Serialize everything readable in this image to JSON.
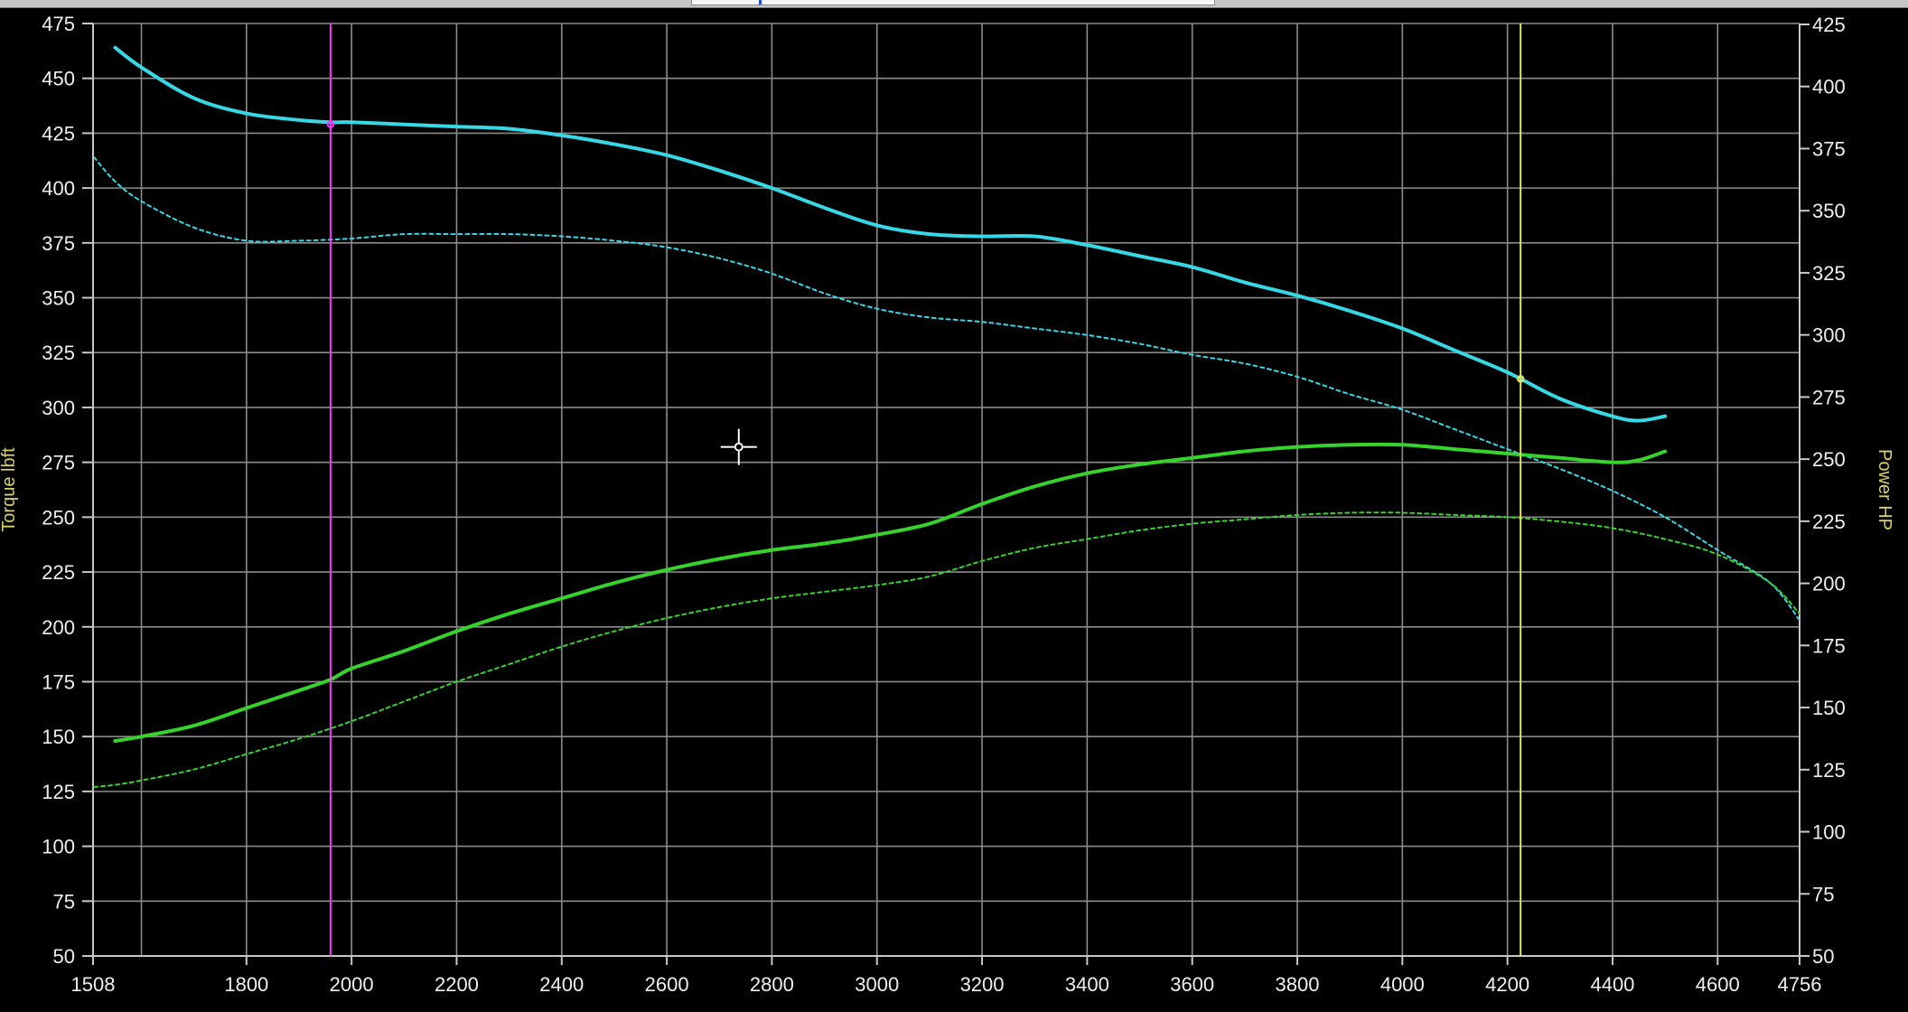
{
  "colors": {
    "background": "#000000",
    "grid": "#8b8b8b",
    "axis": "#c8c8c8",
    "tick_text": "#efefef",
    "axis_title": "#d7d16b",
    "torque": "#37d8e6",
    "power": "#36d42b",
    "cursor_left": "#ff32ff",
    "cursor_right": "#e7e35f",
    "crosshair": "#ffffff"
  },
  "chart_data": {
    "type": "line",
    "x_label": "",
    "y_left_label": "Torque lbft",
    "y_right_label": "Power HP",
    "x_range": [
      1508,
      4756
    ],
    "y_left_range": [
      50,
      475
    ],
    "y_right_range": [
      50,
      425
    ],
    "x_ticks": [
      1508,
      1800,
      2000,
      2200,
      2400,
      2600,
      2800,
      3000,
      3200,
      3400,
      3600,
      3800,
      4000,
      4200,
      4400,
      4600,
      4756
    ],
    "x_tick_labels": [
      "1508",
      "1800",
      "2000",
      "2200",
      "2400",
      "2600",
      "2800",
      "3000",
      "3200",
      "3400",
      "3600",
      "3800",
      "4000",
      "4200",
      "4400",
      "4600",
      "4756"
    ],
    "vertical_gridlines": [
      1600,
      1800,
      2000,
      2200,
      2400,
      2600,
      2800,
      3000,
      3200,
      3400,
      3600,
      3800,
      4000,
      4200,
      4400,
      4600
    ],
    "y_left_ticks": [
      475,
      450,
      425,
      400,
      375,
      350,
      325,
      300,
      275,
      250,
      225,
      200,
      175,
      150,
      125,
      100,
      75,
      50
    ],
    "y_left_tick_labels": [
      "475",
      "450",
      "425",
      "400",
      "375",
      "350",
      "325",
      "300",
      "275",
      "250",
      "225",
      "200",
      "175",
      "150",
      "125",
      "100",
      "75",
      "50"
    ],
    "y_right_ticks": [
      425,
      400,
      375,
      350,
      325,
      300,
      275,
      250,
      225,
      200,
      175,
      150,
      125,
      100,
      75,
      50
    ],
    "y_right_tick_labels": [
      "425",
      "400",
      "375",
      "350",
      "325",
      "300",
      "275",
      "250",
      "225",
      "200",
      "175",
      "150",
      "125",
      "100",
      "75",
      "50"
    ],
    "grid": true,
    "series": [
      {
        "axis": "left",
        "style": "solid",
        "color": "#37d8e6",
        "x": [
          1550,
          1600,
          1700,
          1800,
          1900,
          1960,
          2000,
          2100,
          2200,
          2300,
          2400,
          2500,
          2600,
          2700,
          2800,
          2900,
          3000,
          3100,
          3200,
          3300,
          3400,
          3500,
          3600,
          3700,
          3800,
          3900,
          4000,
          4100,
          4200,
          4300,
          4400,
          4450,
          4500
        ],
        "y": [
          464,
          455,
          441,
          434,
          431,
          430,
          430,
          429,
          428,
          427,
          424,
          420,
          415,
          408,
          400,
          391,
          383,
          379,
          378,
          378,
          374,
          369,
          364,
          357,
          351,
          344,
          336,
          326,
          316,
          304,
          296,
          294,
          296
        ]
      },
      {
        "axis": "left",
        "style": "dashed",
        "color": "#37d8e6",
        "x": [
          1510,
          1550,
          1600,
          1700,
          1800,
          1900,
          2000,
          2100,
          2200,
          2300,
          2400,
          2500,
          2600,
          2700,
          2800,
          2900,
          3000,
          3100,
          3200,
          3300,
          3400,
          3500,
          3600,
          3700,
          3800,
          3900,
          4000,
          4100,
          4200,
          4300,
          4400,
          4500,
          4600,
          4700,
          4756
        ],
        "y": [
          414,
          403,
          394,
          382,
          376,
          376,
          377,
          379,
          379,
          379,
          378,
          376,
          373,
          368,
          361,
          352,
          345,
          341,
          339,
          336,
          333,
          329,
          324,
          320,
          314,
          306,
          299,
          290,
          281,
          272,
          262,
          250,
          235,
          220,
          203
        ]
      },
      {
        "axis": "left",
        "style": "solid",
        "color": "#36d42b",
        "x": [
          1550,
          1600,
          1700,
          1800,
          1900,
          1960,
          2000,
          2100,
          2200,
          2300,
          2400,
          2500,
          2600,
          2700,
          2800,
          2900,
          3000,
          3100,
          3200,
          3300,
          3400,
          3500,
          3600,
          3700,
          3800,
          3900,
          4000,
          4100,
          4200,
          4300,
          4400,
          4450,
          4500
        ],
        "y": [
          148,
          150,
          155,
          163,
          171,
          176,
          181,
          189,
          198,
          206,
          213,
          220,
          226,
          231,
          235,
          238,
          242,
          247,
          256,
          264,
          270,
          274,
          277,
          280,
          282,
          283,
          283,
          281,
          279,
          277,
          275,
          276,
          280
        ]
      },
      {
        "axis": "left",
        "style": "dashed",
        "color": "#36d42b",
        "x": [
          1510,
          1550,
          1600,
          1700,
          1800,
          1900,
          2000,
          2100,
          2200,
          2300,
          2400,
          2500,
          2600,
          2700,
          2800,
          2900,
          3000,
          3100,
          3200,
          3300,
          3400,
          3500,
          3600,
          3700,
          3800,
          3900,
          4000,
          4100,
          4200,
          4300,
          4400,
          4500,
          4600,
          4700,
          4756
        ],
        "y": [
          127,
          128,
          130,
          135,
          142,
          149,
          157,
          166,
          175,
          183,
          191,
          198,
          204,
          209,
          213,
          216,
          219,
          223,
          230,
          236,
          240,
          244,
          247,
          249,
          251,
          252,
          252,
          251,
          250,
          248,
          245,
          240,
          233,
          220,
          206
        ]
      }
    ],
    "cursors": [
      {
        "x": 1960,
        "color": "#ff32ff",
        "marker_y": 429
      },
      {
        "x": 4225,
        "color": "#e7e35f",
        "marker_y": 313
      }
    ],
    "crosshair": {
      "x": 2737,
      "y": 282
    }
  }
}
